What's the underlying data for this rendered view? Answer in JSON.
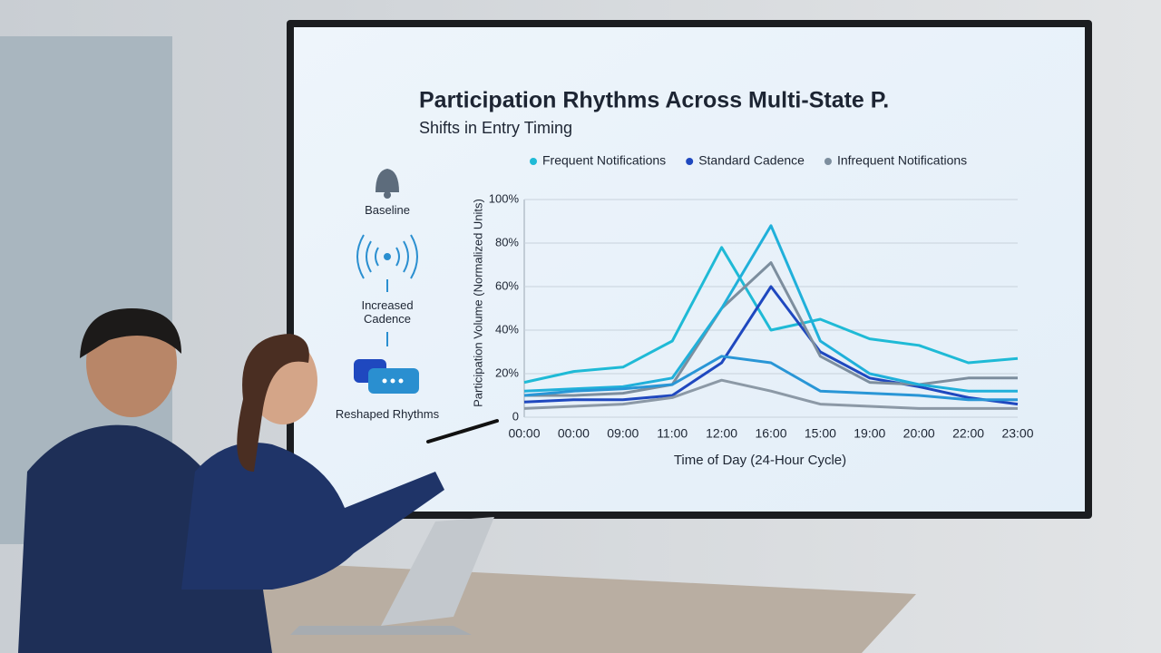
{
  "sidebar": {
    "steps": [
      "Baseline",
      "Increased Cadence",
      "Reshaped Rhythms"
    ]
  },
  "chart_data": {
    "type": "line",
    "title": "Participation Rhythms Across Multi-State P.",
    "subtitle": "Shifts in Entry Timing",
    "xlabel": "Time of Day (24-Hour Cycle)",
    "ylabel": "Participation Volume (Normalized Units)",
    "categories": [
      "00:00",
      "00:00",
      "09:00",
      "11:00",
      "12:00",
      "16:00",
      "15:00",
      "19:00",
      "20:00",
      "22:00",
      "23:00"
    ],
    "ylim": [
      0,
      100
    ],
    "yticks": [
      0,
      {
        "value": 20,
        "label": "20%"
      },
      {
        "value": 40,
        "label": "40%"
      },
      {
        "value": 60,
        "label": "60%"
      },
      {
        "value": 80,
        "label": "80%"
      },
      {
        "value": 100,
        "label": "100%"
      }
    ],
    "grid": true,
    "series": [
      {
        "name": "Frequent Notifications",
        "color": "#1fbad6",
        "values": [
          16,
          21,
          23,
          35,
          78,
          40,
          45,
          36,
          33,
          25,
          27
        ]
      },
      {
        "name": "Standard Cadence",
        "color": "#1f48bf",
        "values": [
          7,
          8,
          8,
          10,
          25,
          60,
          30,
          18,
          14,
          9,
          6
        ]
      },
      {
        "name": "Infrequent Notifications",
        "color": "#7d8e9e",
        "values": [
          10,
          10,
          11,
          15,
          50,
          71,
          28,
          16,
          15,
          18,
          18
        ]
      },
      {
        "color": "#20b0da",
        "values": [
          12,
          13,
          14,
          18,
          50,
          88,
          35,
          20,
          15,
          12,
          12
        ]
      },
      {
        "color": "#2996d6",
        "values": [
          10,
          12,
          13,
          15,
          28,
          25,
          12,
          11,
          10,
          8,
          8
        ]
      },
      {
        "color": "#8c99a6",
        "values": [
          4,
          5,
          6,
          9,
          17,
          12,
          6,
          5,
          4,
          4,
          4
        ]
      }
    ]
  }
}
